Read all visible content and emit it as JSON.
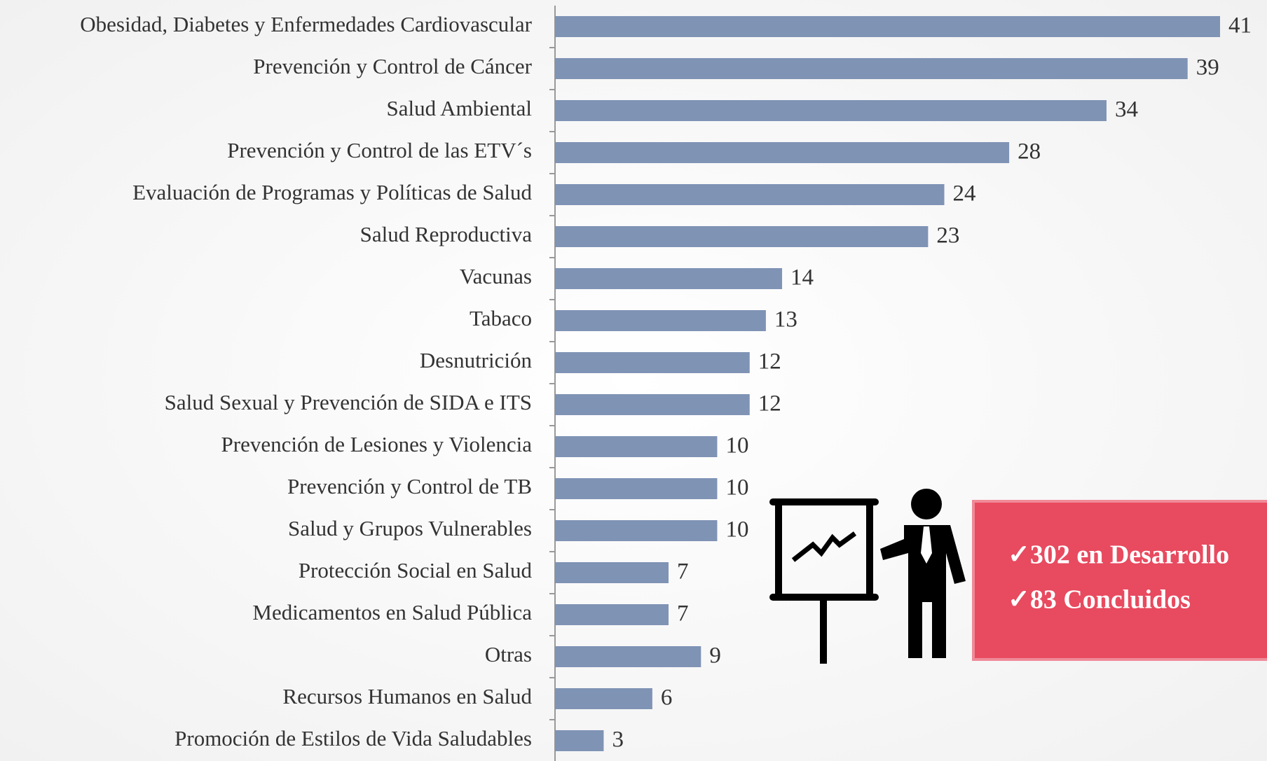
{
  "chart_data": {
    "type": "bar",
    "orientation": "horizontal",
    "categories": [
      "Obesidad, Diabetes y Enfermedades Cardiovascular",
      "Prevención y Control de Cáncer",
      "Salud Ambiental",
      "Prevención y Control de las ETV´s",
      "Evaluación de Programas y Políticas de Salud",
      "Salud Reproductiva",
      "Vacunas",
      "Tabaco",
      "Desnutrición",
      "Salud Sexual y Prevención de SIDA e ITS",
      "Prevención de Lesiones y Violencia",
      "Prevención y Control de TB",
      "Salud y Grupos Vulnerables",
      "Protección Social en Salud",
      "Medicamentos en Salud Pública",
      "Otras",
      "Recursos Humanos en Salud",
      "Promoción de Estilos de Vida Saludables"
    ],
    "values": [
      41,
      39,
      34,
      28,
      24,
      23,
      14,
      13,
      12,
      12,
      10,
      10,
      10,
      7,
      7,
      9,
      6,
      3
    ],
    "color": "#7f93b5",
    "annotations": [
      "✓302 en Desarrollo",
      "✓83 Concluidos"
    ]
  }
}
